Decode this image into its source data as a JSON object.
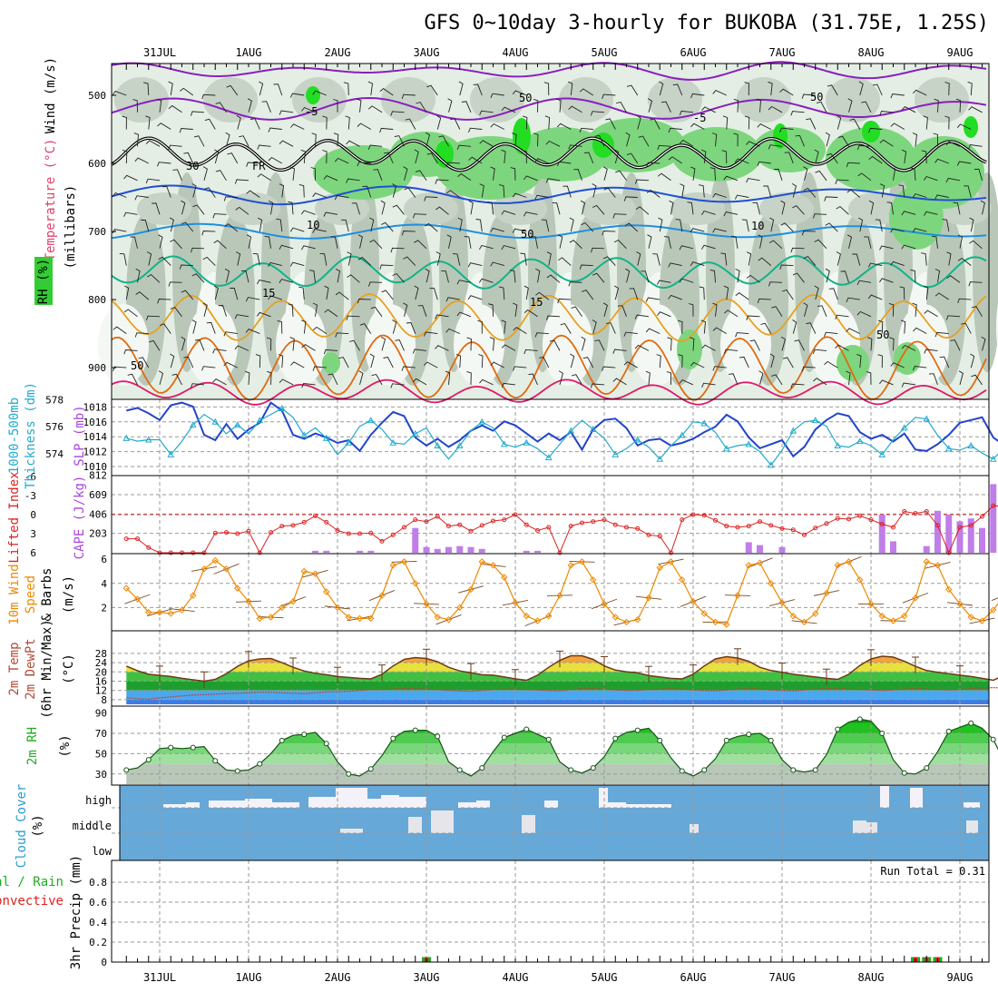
{
  "title": "GFS 0~10day 3-hourly for BUKOBA (31.75E, 1.25S)",
  "dates": [
    "31JUL",
    "1AUG",
    "2AUG",
    "3AUG",
    "4AUG",
    "5AUG",
    "6AUG",
    "7AUG",
    "8AUG",
    "9AUG"
  ],
  "colors": {
    "green": "#22aa22",
    "orange": "#ee8800",
    "red": "#dd2222",
    "violet": "#aa44dd",
    "blue": "#2244cc",
    "cyan": "#22aacc",
    "sky": "#66a8d8"
  },
  "panels": {
    "upper": {
      "ylabel_wind": "Wind (m/s)",
      "ylabel_temp": "Temperature (°C)",
      "ylabel_mb": "(millibars)",
      "legend_rh": "RH (%)",
      "yticks": [
        500,
        600,
        700,
        800,
        900
      ],
      "labels": {
        "fr": "FR",
        "m5": "-5",
        "m5b": "-5",
        "t10": "10",
        "t10b": "10",
        "t15": "15",
        "t15b": "15",
        "rh50a": "50",
        "rh50b": "50",
        "rh50c": "50",
        "rh30a": "30",
        "rh30b": "30",
        "rh50d": "50",
        "rh50e": "50"
      }
    },
    "thickness": {
      "ylabel_a": "1000-500mb",
      "ylabel_b": "Thickness (dm)",
      "ylabel_c": "SLP (mb)",
      "yticks_left": [
        574,
        576,
        578
      ],
      "yticks_right": [
        1010,
        1012,
        1014,
        1016,
        1018
      ]
    },
    "cape": {
      "ylabel_a": "Lifted Index",
      "ylabel_b": "CAPE (J/kg)",
      "yticks_left": [
        "6",
        "3",
        "0",
        "-3",
        "-6"
      ],
      "yticks_right": [
        203,
        406,
        609,
        812
      ]
    },
    "wind10": {
      "ylabel_a": "10m Wind",
      "ylabel_b": "Speed",
      "ylabel_c": "& Barbs",
      "ylabel_d": "(m/s)",
      "yticks": [
        2,
        4,
        6
      ]
    },
    "temp2m": {
      "ylabel_a": "2m Temp",
      "ylabel_b": "2m DewPt",
      "ylabel_c": "(6hr Min/Max)",
      "ylabel_d": "(°C)",
      "yticks": [
        8,
        12,
        16,
        20,
        24,
        28
      ]
    },
    "rh2m": {
      "ylabel_a": "2m RH",
      "ylabel_b": "(%)",
      "yticks": [
        30,
        50,
        70,
        90
      ]
    },
    "cloud": {
      "ylabel_a": "Cloud Cover",
      "ylabel_b": "(%)",
      "levels": [
        "high",
        "middle",
        "low"
      ]
    },
    "precip": {
      "ylabel_a": "Total / Rain",
      "ylabel_b": "Convective",
      "ylabel_c": "3hr Precip (mm)",
      "yticks": [
        "0",
        "0.2",
        "0.4",
        "0.6",
        "0.8"
      ],
      "run_total": "Run Total = 0.31"
    }
  },
  "chart_data": [
    {
      "type": "line",
      "name": "thickness_slp",
      "x_unit": "3-hourly steps from 30JUL 15Z",
      "series": [
        {
          "name": "1000-500mb Thickness (dm)",
          "values": [
            577.2,
            577.4,
            577.0,
            576.5,
            577.6,
            577.8,
            577.5,
            575.4,
            575.0,
            576.2,
            575.1,
            575.8,
            576.3,
            577.8,
            577.2,
            575.4,
            575.1,
            575.5,
            575.2,
            574.8,
            575.0,
            574.2,
            575.4,
            576.3,
            577.1,
            576.8,
            575.2,
            574.6,
            575.1,
            574.5,
            575.0,
            575.7,
            576.1,
            575.7,
            576.4,
            576.1,
            575.5,
            574.9,
            575.5,
            575.0,
            575.6,
            574.3,
            575.8,
            576.5,
            576.6,
            575.9,
            574.6,
            575.0,
            575.1,
            574.6,
            574.8,
            575.1,
            575.6,
            576.0,
            576.9,
            576.4,
            575.2,
            574.4,
            574.7,
            575.0,
            573.8,
            574.5,
            575.8,
            576.5,
            577.0,
            576.8,
            575.6,
            575.1,
            575.4,
            574.9,
            575.5,
            574.3,
            574.2,
            574.7,
            575.4,
            576.3,
            576.5,
            576.7,
            575.2,
            574.6,
            575.1,
            575.3,
            574.6,
            573.4,
            573.2,
            574.0,
            575.1,
            575.6,
            576.0,
            575.3,
            574.6,
            575.2,
            575.5,
            575.0,
            574.8,
            575.4,
            576.0
          ]
        },
        {
          "name": "SLP (mb)",
          "values": [
            1013.8,
            1013.4,
            1013.6,
            1013.6,
            1011.6,
            1013.4,
            1015.6,
            1017.0,
            1016.0,
            1014.4,
            1015.6,
            1014.4,
            1016.2,
            1017.0,
            1017.8,
            1016.6,
            1014.2,
            1015.2,
            1013.8,
            1011.6,
            1013.2,
            1015.4,
            1016.2,
            1015.0,
            1013.2,
            1013.0,
            1014.4,
            1015.2,
            1012.8,
            1011.0,
            1012.8,
            1014.8,
            1016.0,
            1015.2,
            1013.0,
            1012.6,
            1013.2,
            1012.4,
            1011.2,
            1013.0,
            1014.8,
            1016.2,
            1015.0,
            1013.8,
            1011.6,
            1012.4,
            1013.6,
            1012.6,
            1011.0,
            1012.8,
            1014.2,
            1016.0,
            1015.8,
            1014.6,
            1012.4,
            1012.8,
            1013.0,
            1012.0,
            1010.2,
            1012.2,
            1014.8,
            1016.0,
            1016.2,
            1015.4,
            1012.8,
            1012.6,
            1013.4,
            1012.8,
            1011.6,
            1013.6,
            1015.2,
            1016.6,
            1016.4,
            1014.2,
            1012.4,
            1012.2,
            1012.8,
            1011.8,
            1011.0,
            1012.6,
            1015.0,
            1016.8,
            1017.2,
            1016.4,
            1013.6,
            1013.4,
            1012.4,
            1011.6,
            1010.4,
            1012.6,
            1014.8,
            1017.0,
            1017.4,
            1016.2,
            1013.8,
            1012.4,
            1014.0
          ]
        }
      ]
    },
    {
      "type": "bar",
      "name": "lifted_index_cape",
      "x_unit": "3-hourly steps from 30JUL 15Z",
      "series": [
        {
          "name": "Lifted Index",
          "values": [
            3.8,
            3.8,
            5.2,
            6.0,
            6.0,
            6.0,
            6.0,
            6.0,
            2.9,
            2.8,
            3.0,
            2.6,
            6.0,
            2.8,
            1.8,
            1.7,
            1.2,
            0.2,
            1.2,
            2.5,
            3.0,
            3.0,
            2.9,
            4.2,
            3.2,
            2.0,
            0.8,
            1.1,
            0.3,
            1.8,
            1.6,
            2.6,
            1.7,
            1.0,
            0.8,
            0.0,
            1.6,
            2.5,
            2.0,
            6.0,
            1.8,
            1.3,
            1.1,
            0.8,
            1.6,
            2.0,
            2.2,
            3.2,
            3.4,
            6.0,
            0.8,
            0.0,
            0.1,
            0.9,
            1.8,
            2.0,
            1.8,
            1.1,
            1.7,
            2.2,
            2.4,
            3.2,
            2.1,
            1.4,
            0.6,
            0.7,
            0.2,
            0.8,
            1.5,
            2.0,
            -0.5,
            -0.2,
            -0.5,
            1.7,
            6.0,
            2.0,
            1.7,
            0.3,
            -1.4,
            -1.3,
            -1.0,
            -2.3,
            -1.0,
            0.4,
            1.3,
            0.7,
            2.2,
            0.0,
            -0.8,
            -1.6,
            -3.2,
            -1.1,
            1.0,
            2.2,
            3.0,
            0.0,
            -1.5
          ]
        },
        {
          "name": "CAPE (J/kg)",
          "values": [
            0,
            0,
            0,
            0,
            0,
            0,
            0,
            0,
            0,
            0,
            0,
            0,
            0,
            0,
            0,
            0,
            0,
            20,
            20,
            0,
            0,
            20,
            20,
            0,
            0,
            0,
            260,
            60,
            40,
            60,
            70,
            60,
            40,
            0,
            0,
            0,
            20,
            20,
            0,
            0,
            0,
            0,
            0,
            0,
            0,
            0,
            0,
            0,
            0,
            0,
            0,
            0,
            0,
            0,
            0,
            0,
            110,
            80,
            0,
            60,
            0,
            0,
            0,
            0,
            0,
            0,
            0,
            0,
            400,
            120,
            0,
            0,
            70,
            440,
            400,
            330,
            360,
            260,
            720,
            340,
            260,
            140,
            110,
            110,
            120,
            140,
            470,
            360,
            440,
            520,
            800,
            470,
            380,
            130,
            80,
            60,
            100,
            40
          ]
        }
      ]
    },
    {
      "type": "line",
      "name": "wind10m",
      "x_unit": "3-hourly steps from 30JUL 15Z",
      "series": [
        {
          "name": "10m Wind Speed (m/s)",
          "values": [
            3.6,
            2.7,
            1.6,
            1.6,
            1.5,
            1.8,
            3.0,
            5.2,
            5.9,
            5.2,
            3.6,
            2.5,
            1.1,
            1.2,
            2.0,
            2.5,
            5.0,
            4.8,
            3.3,
            2.0,
            1.2,
            1.1,
            1.1,
            3.0,
            5.5,
            5.8,
            4.0,
            2.3,
            1.2,
            1.0,
            2.0,
            3.5,
            5.8,
            5.5,
            4.5,
            2.4,
            1.3,
            0.9,
            1.3,
            3.0,
            5.5,
            5.8,
            4.3,
            2.3,
            1.2,
            0.8,
            1.0,
            2.8,
            5.3,
            5.8,
            4.3,
            2.5,
            1.5,
            0.8,
            0.6,
            3.0,
            5.5,
            5.7,
            4.0,
            2.4,
            1.3,
            0.8,
            1.5,
            3.2,
            5.5,
            5.8,
            4.3,
            2.3,
            1.3,
            0.9,
            1.3,
            2.8,
            5.8,
            5.5,
            3.5,
            2.3,
            1.2,
            0.9,
            1.8,
            3.0,
            4.4,
            4.6,
            3.2,
            2.2,
            2.0,
            1.8,
            2.4,
            3.0,
            5.0,
            5.2,
            4.3,
            2.8,
            2.0,
            1.9,
            2.0,
            2.0,
            3.5
          ]
        }
      ]
    },
    {
      "type": "area",
      "name": "temp_dewpt_2m",
      "x_unit": "3-hourly steps from 30JUL 15Z",
      "series": [
        {
          "name": "2m Temp (°C)",
          "values": [
            22.5,
            20.5,
            19.0,
            18.5,
            18.0,
            17.2,
            16.6,
            16.0,
            16.8,
            19.2,
            22.4,
            24.8,
            25.6,
            25.8,
            24.0,
            22.0,
            20.4,
            19.4,
            18.8,
            18.0,
            17.6,
            17.2,
            17.0,
            19.0,
            22.6,
            25.4,
            26.2,
            25.8,
            24.4,
            22.0,
            20.4,
            19.6,
            18.8,
            18.6,
            17.8,
            17.0,
            16.4,
            18.6,
            22.0,
            25.0,
            27.0,
            27.0,
            25.4,
            22.6,
            20.8,
            20.0,
            19.6,
            18.4,
            17.8,
            17.2,
            17.0,
            19.0,
            22.6,
            25.6,
            26.6,
            26.0,
            24.6,
            22.0,
            20.6,
            19.8,
            19.0,
            18.4,
            17.8,
            17.2,
            16.8,
            19.0,
            22.8,
            25.6,
            26.8,
            26.4,
            24.6,
            22.4,
            20.6,
            19.8,
            19.2,
            18.6,
            18.0,
            17.2,
            16.4,
            18.6,
            22.0,
            25.6,
            26.8,
            26.0,
            24.4,
            22.0,
            20.4,
            19.4,
            18.6,
            18.0,
            17.6,
            17.0,
            16.6,
            18.6,
            22.8,
            27.0,
            29.6
          ]
        },
        {
          "name": "2m DewPt (°C)",
          "values": [
            8.8,
            8.4,
            8.2,
            8.8,
            9.2,
            9.6,
            10.0,
            10.2,
            10.4,
            10.6,
            10.8,
            11.0,
            11.2,
            11.2,
            11.0,
            10.8,
            10.6,
            11.0,
            11.4,
            11.4,
            11.6,
            12.0,
            12.4,
            12.4,
            12.6,
            12.8,
            12.8,
            12.6,
            12.4,
            12.0,
            11.8,
            11.6,
            12.0,
            12.4,
            12.6,
            12.6,
            12.4,
            12.2,
            12.0,
            11.8,
            12.4,
            12.8,
            12.8,
            12.6,
            12.2,
            12.0,
            12.0,
            12.4,
            12.6,
            12.8,
            12.6,
            12.2,
            12.0,
            11.8,
            12.2,
            12.6,
            12.8,
            12.6,
            12.2,
            12.0,
            11.8,
            12.2,
            12.6,
            12.8,
            12.8,
            12.6,
            12.4,
            12.2,
            12.0,
            12.2,
            12.6,
            12.8,
            12.6,
            12.4,
            12.2,
            12.4,
            12.8,
            13.0,
            13.2,
            13.0,
            12.8,
            12.4,
            12.8,
            13.4,
            14.2,
            14.6,
            14.2,
            13.8,
            13.4,
            13.2,
            13.6,
            14.4,
            14.8,
            14.6,
            14.2,
            13.8,
            13.6
          ]
        }
      ]
    },
    {
      "type": "area",
      "name": "rh2m",
      "x_unit": "3-hourly steps from 30JUL 15Z",
      "series": [
        {
          "name": "2m RH (%)",
          "values": [
            34,
            36,
            44,
            55,
            56,
            55,
            56,
            57,
            43,
            34,
            33,
            34,
            40,
            50,
            63,
            68,
            69,
            71,
            60,
            42,
            30,
            28,
            35,
            48,
            65,
            72,
            73,
            73,
            67,
            42,
            34,
            28,
            36,
            52,
            66,
            70,
            74,
            69,
            64,
            42,
            34,
            31,
            36,
            47,
            65,
            71,
            73,
            75,
            63,
            46,
            33,
            28,
            34,
            45,
            63,
            67,
            69,
            70,
            63,
            44,
            34,
            32,
            34,
            49,
            74,
            81,
            84,
            82,
            70,
            44,
            31,
            30,
            36,
            52,
            72,
            76,
            80,
            75,
            64,
            42,
            32,
            29,
            36,
            53,
            78,
            88,
            85,
            80,
            70,
            46,
            33,
            31,
            42,
            58,
            80,
            85,
            80,
            60
          ]
        }
      ]
    },
    {
      "type": "bar",
      "name": "precip3hr",
      "x_unit": "3-hourly steps from 30JUL 15Z",
      "run_total": 0.31,
      "series": [
        {
          "name": "3hr Precip (mm)",
          "values": [
            0,
            0,
            0,
            0,
            0,
            0,
            0,
            0,
            0,
            0,
            0,
            0,
            0,
            0,
            0,
            0,
            0,
            0,
            0,
            0,
            0,
            0,
            0,
            0,
            0,
            0,
            0,
            0.05,
            0,
            0,
            0,
            0,
            0,
            0,
            0,
            0,
            0,
            0,
            0,
            0,
            0,
            0,
            0,
            0,
            0,
            0,
            0,
            0,
            0,
            0,
            0,
            0,
            0,
            0,
            0,
            0,
            0,
            0,
            0,
            0,
            0,
            0,
            0,
            0,
            0,
            0,
            0,
            0,
            0,
            0,
            0,
            0.05,
            0.05,
            0.05,
            0,
            0,
            0,
            0,
            0,
            0,
            0,
            0,
            0,
            0,
            0,
            0,
            0,
            0,
            0,
            0,
            0,
            0,
            0,
            0,
            0,
            0.12,
            0
          ]
        }
      ]
    }
  ]
}
